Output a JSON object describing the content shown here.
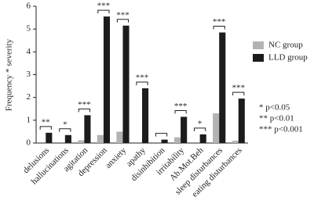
{
  "chart_data": {
    "type": "bar",
    "y_label": "Frequency * severity",
    "categories": [
      "delusions",
      "hallucinations",
      "agitation",
      "depression",
      "anxiety",
      "apathy",
      "disinhibition",
      "irritability",
      "Ab.Mot.Beh",
      "sleep disturbances",
      "eating disturbances"
    ],
    "series": [
      {
        "name": "NC group",
        "color": "#b3b3b3",
        "values": [
          0,
          0,
          0.12,
          0.35,
          0.5,
          0,
          0,
          0.25,
          0,
          1.3,
          0.1
        ]
      },
      {
        "name": "LLD group",
        "color": "#1c1c1c",
        "values": [
          0.45,
          0.35,
          1.22,
          5.55,
          5.15,
          2.4,
          0.15,
          1.15,
          0.38,
          4.85,
          1.95
        ]
      }
    ],
    "significance": [
      "**",
      "*",
      "***",
      "***",
      "***",
      "***",
      null,
      "***",
      "*",
      "***",
      "***"
    ],
    "notes": [
      "* p<0.05",
      "** p<0.01",
      "*** p<0.001"
    ],
    "ylim": [
      0,
      6
    ],
    "yticks": [
      0,
      1,
      2,
      3,
      4,
      5,
      6
    ],
    "grid": false
  }
}
